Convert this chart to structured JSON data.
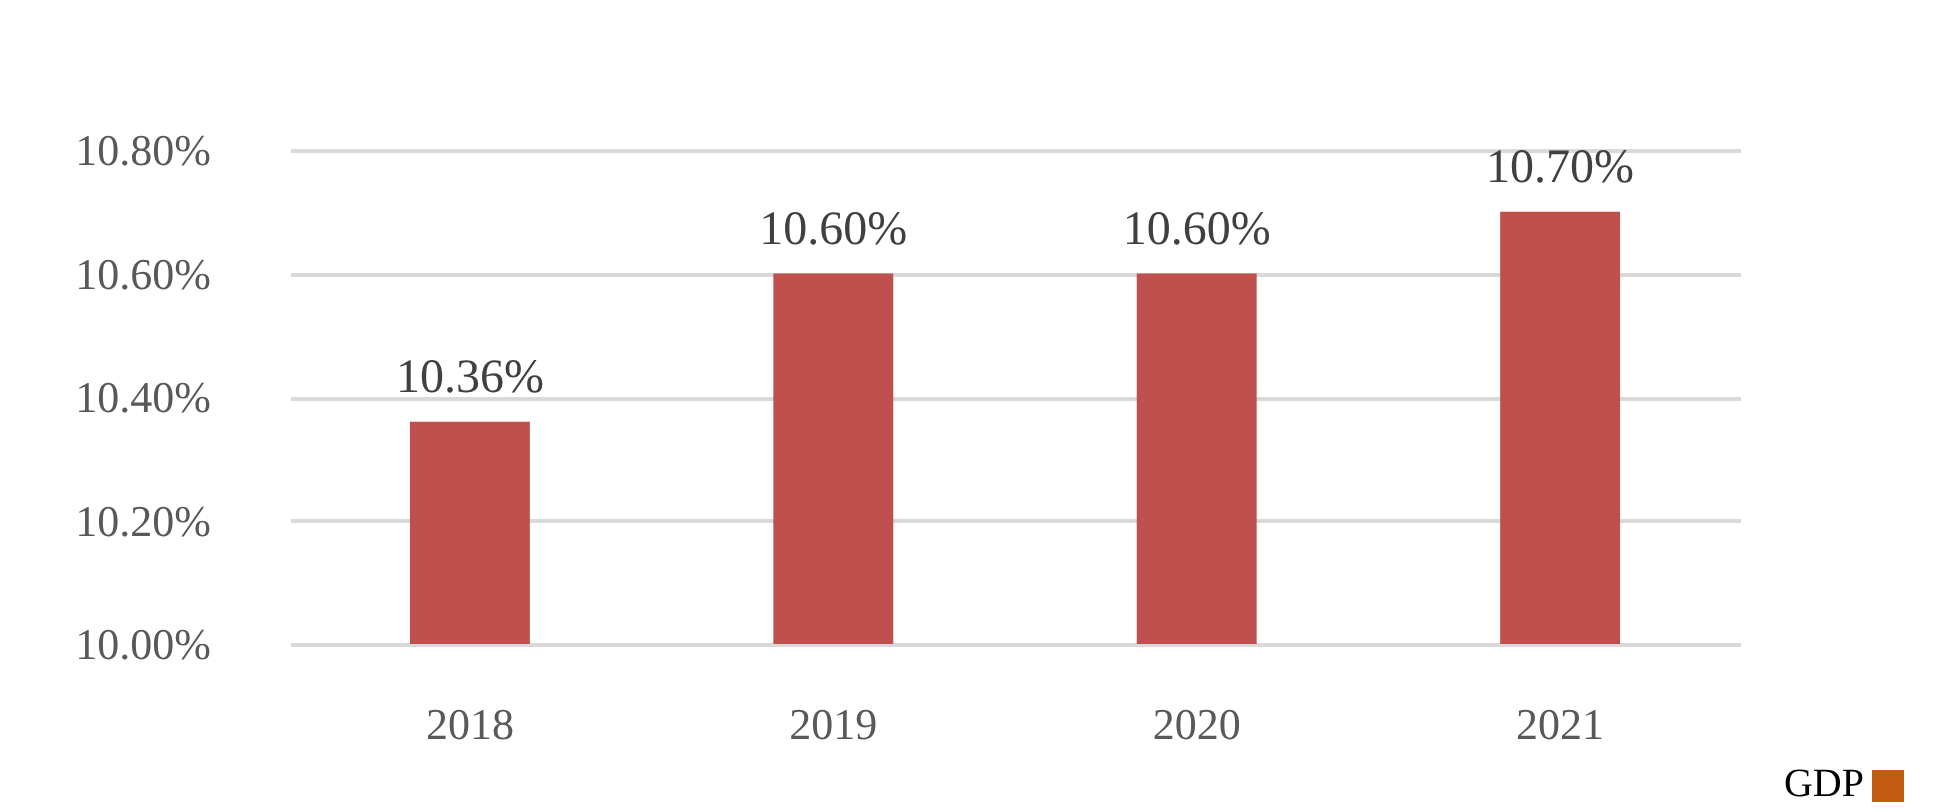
{
  "chart_data": {
    "type": "bar",
    "categories": [
      "2018",
      "2019",
      "2020",
      "2021"
    ],
    "values": [
      10.36,
      10.6,
      10.6,
      10.7
    ],
    "value_labels": [
      "10.36%",
      "10.60%",
      "10.60%",
      "10.70%"
    ],
    "color": "#c0504d",
    "ylim": [
      10,
      10.8
    ],
    "yticks": [
      {
        "value": 10,
        "label": "10.00%"
      },
      {
        "value": 10.2,
        "label": "10.20%"
      },
      {
        "value": 10.4,
        "label": "10.40%"
      },
      {
        "value": 10.6,
        "label": "10.60%"
      },
      {
        "value": 10.8,
        "label": "10.80%"
      }
    ],
    "grid": "y",
    "annotations": [
      "GDP"
    ]
  }
}
